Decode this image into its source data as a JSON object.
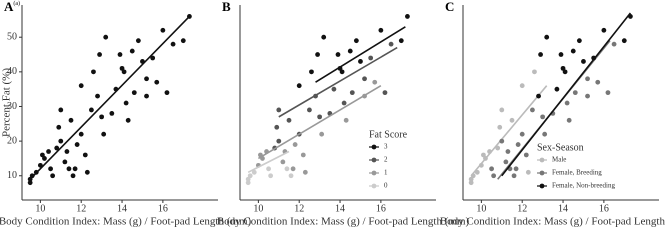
{
  "chart_data": [
    {
      "type": "scatter",
      "panel_label": "A",
      "panel_tag": "(a)",
      "xlabel": "Body Condition Index: Mass (g) / Foot-pad Length (mm)",
      "ylabel": "Percent Fat (%)",
      "xlim": [
        9.1,
        18.7
      ],
      "ylim": [
        3,
        59.3
      ],
      "xticks": [
        10,
        12,
        14,
        16
      ],
      "yticks": [
        10,
        20,
        30,
        40,
        50
      ],
      "series": [
        {
          "color": "#111111",
          "x": [
            9.5,
            9.5,
            9.8,
            10.5,
            10.6,
            11.4,
            11.6,
            9.6,
            10.0,
            10.1,
            10.2,
            10.4,
            11.2,
            11.3,
            11.7,
            12.2,
            12.3,
            11.8,
            13.1,
            14.3,
            15.7,
            15.2,
            10.8,
            10.9,
            11.0,
            12.0,
            11.5,
            12.5,
            13.0,
            13.5,
            14.2,
            14.6,
            12.8,
            16.2,
            15.2,
            15.5,
            16.5,
            11.0,
            13.7,
            12.0,
            12.6,
            12.9,
            13.2,
            13.9,
            14.0,
            14.1,
            14.5,
            14.8,
            15.0,
            16.0,
            17.0,
            17.3
          ],
          "values": [
            8,
            9,
            11,
            12,
            10,
            12,
            10,
            10,
            13,
            16,
            15,
            17,
            14,
            17,
            12,
            16,
            11,
            19,
            22,
            26,
            37,
            33,
            18,
            24,
            20,
            22,
            26,
            29,
            27,
            28,
            31,
            34,
            33,
            34,
            38,
            44,
            48,
            29,
            35,
            36,
            40,
            45,
            50,
            45,
            41,
            40,
            46,
            49,
            43,
            52,
            49,
            56
          ],
          "fit": {
            "x": [
              9.5,
              17.3
            ],
            "values": [
              9,
              56
            ]
          }
        }
      ]
    },
    {
      "type": "scatter",
      "panel_label": "B",
      "xlabel": "Body Condition Index: Mass (g) / Foot-pad Length (mm)",
      "xlim": [
        9.1,
        18.7
      ],
      "ylim": [
        3,
        59.3
      ],
      "xticks": [
        10,
        12,
        14,
        16
      ],
      "legend_title": "Fat Score",
      "legend": "lower right",
      "series": [
        {
          "name": "3",
          "color": "#111111",
          "x": [
            12.0,
            12.6,
            12.9,
            13.2,
            13.9,
            14.0,
            14.1,
            14.5,
            14.8,
            15.0,
            16.0,
            17.0,
            17.3
          ],
          "values": [
            36,
            40,
            45,
            50,
            45,
            41,
            40,
            46,
            49,
            43,
            52,
            49,
            56
          ],
          "fit": {
            "x": [
              12.8,
              17.2
            ],
            "values": [
              37,
              53
            ]
          }
        },
        {
          "name": "2",
          "color": "#555555",
          "x": [
            10.8,
            10.9,
            11.0,
            12.0,
            11.5,
            12.5,
            13.0,
            13.5,
            14.2,
            14.6,
            12.8,
            16.2,
            15.2,
            15.5,
            16.5,
            11.0,
            13.7
          ],
          "values": [
            18,
            24,
            20,
            22,
            26,
            29,
            27,
            28,
            31,
            34,
            33,
            34,
            38,
            44,
            48,
            29,
            35
          ],
          "fit": {
            "x": [
              11.0,
              16.8
            ],
            "values": [
              27,
              47
            ]
          }
        },
        {
          "name": "1",
          "color": "#999999",
          "x": [
            10.0,
            10.1,
            10.2,
            10.4,
            11.2,
            11.3,
            11.7,
            12.2,
            12.3,
            11.8,
            13.1,
            14.3,
            15.7,
            15.2
          ],
          "values": [
            13,
            16,
            15,
            17,
            14,
            17,
            12,
            16,
            11,
            19,
            22,
            26,
            37,
            33
          ],
          "fit": {
            "x": [
              10.0,
              16.0
            ],
            "values": [
              15,
              36
            ]
          }
        },
        {
          "name": "0",
          "color": "#cccccc",
          "x": [
            9.5,
            9.5,
            9.8,
            10.5,
            10.6,
            11.4,
            11.6,
            9.6
          ],
          "values": [
            8,
            9,
            11,
            12,
            10,
            12,
            10,
            10
          ],
          "fit": {
            "x": [
              9.5,
              11.5
            ],
            "values": [
              11,
              17
            ]
          }
        }
      ]
    },
    {
      "type": "scatter",
      "panel_label": "C",
      "xlabel": "Body Condition Index: Mass (g) / Foot-pad Length (mm)",
      "xlim": [
        9.1,
        18.7
      ],
      "ylim": [
        3,
        59.3
      ],
      "xticks": [
        10,
        12,
        14,
        16
      ],
      "legend_title": "Sex-Season",
      "legend": "lower right",
      "series": [
        {
          "name": "Male",
          "color": "#bbbbbb",
          "x": [
            9.5,
            9.5,
            9.6,
            9.8,
            10.0,
            10.1,
            10.2,
            10.4,
            10.8,
            10.9,
            11.0,
            11.5,
            12.0,
            12.6,
            12.3
          ],
          "values": [
            8,
            9,
            10,
            11,
            13,
            16,
            15,
            17,
            18,
            24,
            29,
            26,
            36,
            40,
            11
          ],
          "fit": {
            "x": [
              9.5,
              13.2
            ],
            "values": [
              10,
              36
            ]
          }
        },
        {
          "name": "Female, Breeding",
          "color": "#777777",
          "x": [
            10.5,
            10.6,
            11.2,
            11.3,
            11.4,
            11.6,
            11.7,
            11.8,
            12.0,
            12.2,
            12.5,
            13.0,
            13.1,
            13.5,
            14.2,
            14.3,
            14.6,
            15.2,
            15.2,
            15.7,
            16.2,
            16.5,
            11.0
          ],
          "values": [
            12,
            10,
            14,
            17,
            12,
            10,
            12,
            19,
            22,
            16,
            29,
            27,
            22,
            28,
            31,
            26,
            34,
            33,
            38,
            37,
            34,
            48,
            20
          ],
          "fit": {
            "x": [
              10.8,
              16.3
            ],
            "values": [
              9,
              49
            ]
          }
        },
        {
          "name": "Female, Non-breeding",
          "color": "#111111",
          "x": [
            12.8,
            12.9,
            13.2,
            13.7,
            13.9,
            14.0,
            14.1,
            14.5,
            14.8,
            15.0,
            15.5,
            16.0,
            17.0,
            17.3
          ],
          "values": [
            33,
            45,
            50,
            35,
            45,
            41,
            40,
            46,
            49,
            43,
            44,
            52,
            49,
            56
          ],
          "fit": {
            "x": [
              11.0,
              17.3
            ],
            "values": [
              10,
              57
            ]
          }
        }
      ]
    }
  ]
}
